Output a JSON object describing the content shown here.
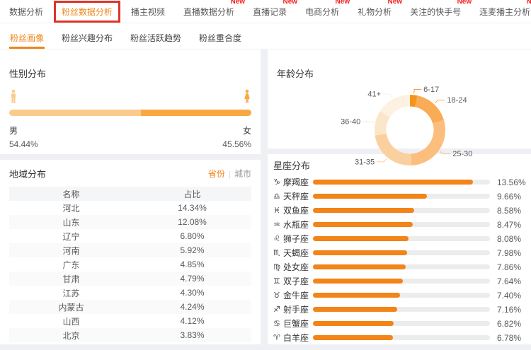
{
  "labels": {
    "new": "New"
  },
  "colors": {
    "accent": "#f08519",
    "bar_orange": "#f28418",
    "bar_track": "#ececec",
    "new_red": "#f52020",
    "annotation_box_red": "#dd3527",
    "male": "#fbcb8d",
    "female": "#f7a843"
  },
  "nav_primary": {
    "items": [
      {
        "label": "数据分析",
        "new": false,
        "selected": false,
        "highlight_box": false
      },
      {
        "label": "粉丝数据分析",
        "new": false,
        "selected": true,
        "highlight_box": true
      },
      {
        "label": "播主视频",
        "new": false,
        "selected": false,
        "highlight_box": false
      },
      {
        "label": "直播数据分析",
        "new": true,
        "selected": false,
        "highlight_box": false
      },
      {
        "label": "直播记录",
        "new": true,
        "selected": false,
        "highlight_box": false
      },
      {
        "label": "电商分析",
        "new": true,
        "selected": false,
        "highlight_box": false
      },
      {
        "label": "礼物分析",
        "new": true,
        "selected": false,
        "highlight_box": false
      },
      {
        "label": "关注的快手号",
        "new": true,
        "selected": false,
        "highlight_box": false
      },
      {
        "label": "连麦播主分析",
        "new": true,
        "selected": false,
        "highlight_box": false
      }
    ]
  },
  "nav_secondary": {
    "items": [
      {
        "label": "粉丝画像",
        "active": true
      },
      {
        "label": "粉丝兴趣分布",
        "active": false
      },
      {
        "label": "粉丝活跃趋势",
        "active": false
      },
      {
        "label": "粉丝重合度",
        "active": false
      }
    ]
  },
  "gender": {
    "title": "性别分布",
    "male_label": "男",
    "male_value": "54.44%",
    "female_label": "女",
    "female_value": "45.56%"
  },
  "region": {
    "title": "地域分布",
    "toggle": {
      "province": "省份",
      "divider": "|",
      "city": "城市",
      "selected": "province"
    },
    "columns": [
      "名称",
      "占比"
    ],
    "rows": [
      [
        "河北",
        "14.34%"
      ],
      [
        "山东",
        "12.08%"
      ],
      [
        "辽宁",
        "6.80%"
      ],
      [
        "河南",
        "5.92%"
      ],
      [
        "广东",
        "4.85%"
      ],
      [
        "甘肃",
        "4.79%"
      ],
      [
        "江苏",
        "4.30%"
      ],
      [
        "内蒙古",
        "4.24%"
      ],
      [
        "山西",
        "4.12%"
      ],
      [
        "北京",
        "3.83%"
      ]
    ]
  },
  "age": {
    "title": "年龄分布"
  },
  "zodiac": {
    "title": "星座分布",
    "rows": [
      {
        "icon": "♑",
        "name": "摩羯座",
        "label": "13.56%"
      },
      {
        "icon": "♎",
        "name": "天秤座",
        "label": "9.66%"
      },
      {
        "icon": "♓",
        "name": "双鱼座",
        "label": "8.58%"
      },
      {
        "icon": "♒",
        "name": "水瓶座",
        "label": "8.47%"
      },
      {
        "icon": "♌",
        "name": "狮子座",
        "label": "8.08%"
      },
      {
        "icon": "♏",
        "name": "天蝎座",
        "label": "7.98%"
      },
      {
        "icon": "♍",
        "name": "处女座",
        "label": "7.86%"
      },
      {
        "icon": "♊",
        "name": "双子座",
        "label": "7.64%"
      },
      {
        "icon": "♉",
        "name": "金牛座",
        "label": "7.40%"
      },
      {
        "icon": "♐",
        "name": "射手座",
        "label": "7.16%"
      },
      {
        "icon": "♋",
        "name": "巨蟹座",
        "label": "6.82%"
      },
      {
        "icon": "♈",
        "name": "白羊座",
        "label": "6.78%"
      }
    ]
  },
  "chart_data": [
    {
      "type": "bar",
      "title": "性别分布",
      "categories": [
        "男",
        "女"
      ],
      "values": [
        54.44,
        45.56
      ],
      "unit": "%",
      "colors": [
        "#fbcb8d",
        "#f7a843"
      ],
      "layout": "single stacked horizontal bar, male left / female right"
    },
    {
      "type": "table",
      "title": "地域分布",
      "columns": [
        "名称",
        "占比"
      ],
      "rows": [
        [
          "河北",
          14.34
        ],
        [
          "山东",
          12.08
        ],
        [
          "辽宁",
          6.8
        ],
        [
          "河南",
          5.92
        ],
        [
          "广东",
          4.85
        ],
        [
          "甘肃",
          4.79
        ],
        [
          "江苏",
          4.3
        ],
        [
          "内蒙古",
          4.24
        ],
        [
          "山西",
          4.12
        ],
        [
          "北京",
          3.83
        ]
      ],
      "unit": "%"
    },
    {
      "type": "pie",
      "title": "年龄分布",
      "labels": [
        "6-17",
        "18-24",
        "25-30",
        "31-35",
        "36-40",
        "41+"
      ],
      "values": [
        3.4,
        17.0,
        28.9,
        23.3,
        11.4,
        16.0
      ],
      "values_note": "slices unlabeled; percentages estimated from arc angles",
      "colors": [
        "#f5941d",
        "#faab55",
        "#fbbe7d",
        "#fbd09f",
        "#fce6c9",
        "#fdf2e1"
      ],
      "donut": true,
      "start_angle": "12 o'clock, clockwise",
      "legend_position": "leader-line labels around ring"
    },
    {
      "type": "bar",
      "orientation": "horizontal",
      "title": "星座分布",
      "categories": [
        "摩羯座",
        "天秤座",
        "双鱼座",
        "水瓶座",
        "狮子座",
        "天蝎座",
        "处女座",
        "双子座",
        "金牛座",
        "射手座",
        "巨蟹座",
        "白羊座"
      ],
      "values": [
        13.56,
        9.66,
        8.58,
        8.47,
        8.08,
        7.98,
        7.86,
        7.64,
        7.4,
        7.16,
        6.82,
        6.78
      ],
      "unit": "%",
      "xlim": [
        0,
        15
      ],
      "bar_color": "#f28418",
      "grid": false
    }
  ]
}
